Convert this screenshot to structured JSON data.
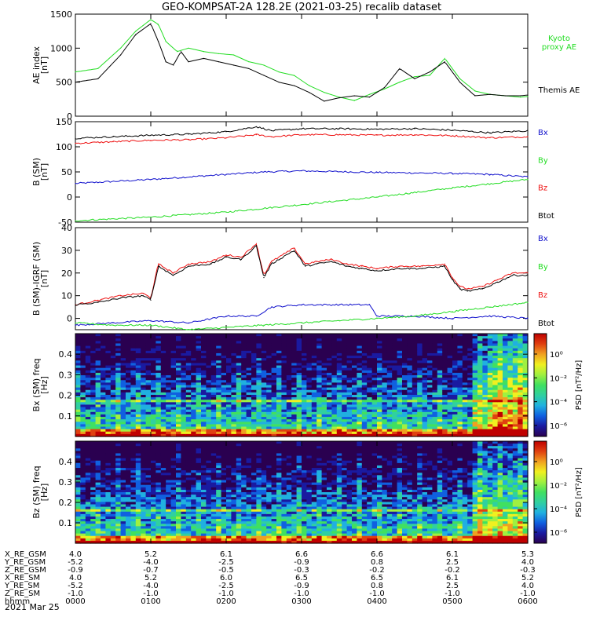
{
  "title": "GEO-KOMPSAT-2A 128.2E (2021-03-25) recalib dataset",
  "date_label": "2021 Mar 25",
  "orbit_table": {
    "rows": [
      {
        "label": "X_RE_GSM",
        "values": [
          "4.0",
          "5.2",
          "6.1",
          "6.6",
          "6.6",
          "6.1",
          "5.3"
        ]
      },
      {
        "label": "Y_RE_GSM",
        "values": [
          "-5.2",
          "-4.0",
          "-2.5",
          "-0.9",
          "0.8",
          "2.5",
          "4.0"
        ]
      },
      {
        "label": "Z_RE_GSM",
        "values": [
          "-0.9",
          "-0.7",
          "-0.5",
          "-0.3",
          "-0.2",
          "-0.2",
          "-0.3"
        ]
      },
      {
        "label": "X_RE_SM",
        "values": [
          "4.0",
          "5.2",
          "6.0",
          "6.5",
          "6.5",
          "6.1",
          "5.2"
        ]
      },
      {
        "label": "Y_RE_SM",
        "values": [
          "-5.2",
          "-4.0",
          "-2.5",
          "-0.9",
          "0.8",
          "2.5",
          "4.0"
        ]
      },
      {
        "label": "Z_RE_SM",
        "values": [
          "-1.0",
          "-1.0",
          "-1.0",
          "-1.0",
          "-1.0",
          "-1.0",
          "-1.0"
        ]
      },
      {
        "label": "hhmm",
        "values": [
          "0000",
          "0100",
          "0200",
          "0300",
          "0400",
          "0500",
          "0600"
        ]
      }
    ]
  },
  "colors": {
    "black": "#000000",
    "green": "#22dd22",
    "red": "#ee1111",
    "blue": "#1111cc"
  },
  "chart_data": [
    {
      "type": "line",
      "ylabel": "AE index [nT]",
      "ylim": [
        0,
        1500
      ],
      "yticks": [
        0,
        500,
        1000,
        1500
      ],
      "xlim": [
        0,
        6
      ],
      "series": [
        {
          "name": "Kyoto proxy AE",
          "legend_label": "Kyoto\nproxy AE",
          "color": "#22dd22",
          "x": [
            0,
            0.3,
            0.6,
            0.8,
            1.0,
            1.1,
            1.2,
            1.35,
            1.5,
            1.7,
            1.9,
            2.1,
            2.3,
            2.5,
            2.7,
            2.9,
            3.1,
            3.3,
            3.5,
            3.7,
            3.9,
            4.1,
            4.3,
            4.5,
            4.7,
            4.9,
            5.1,
            5.3,
            5.5,
            5.7,
            5.9,
            6.0
          ],
          "y": [
            650,
            700,
            1000,
            1250,
            1420,
            1350,
            1100,
            950,
            1000,
            950,
            920,
            900,
            800,
            750,
            650,
            600,
            450,
            350,
            280,
            230,
            320,
            400,
            500,
            580,
            600,
            850,
            550,
            370,
            320,
            300,
            280,
            290
          ]
        },
        {
          "name": "Themis AE",
          "legend_label": "Themis AE",
          "color": "#000000",
          "x": [
            0,
            0.3,
            0.6,
            0.8,
            1.0,
            1.1,
            1.2,
            1.3,
            1.4,
            1.5,
            1.7,
            1.9,
            2.1,
            2.3,
            2.5,
            2.7,
            2.9,
            3.1,
            3.3,
            3.5,
            3.7,
            3.9,
            4.1,
            4.3,
            4.5,
            4.7,
            4.9,
            5.1,
            5.3,
            5.5,
            5.7,
            5.9,
            6.0
          ],
          "y": [
            500,
            550,
            900,
            1200,
            1360,
            1100,
            800,
            750,
            950,
            800,
            850,
            800,
            750,
            700,
            600,
            500,
            450,
            350,
            220,
            270,
            300,
            280,
            420,
            700,
            550,
            650,
            800,
            500,
            300,
            320,
            300,
            300,
            310
          ]
        }
      ]
    },
    {
      "type": "line",
      "ylabel": "B (SM) [nT]",
      "ylim": [
        -50,
        150
      ],
      "yticks": [
        -50,
        0,
        50,
        100,
        150
      ],
      "xlim": [
        0,
        6
      ],
      "series": [
        {
          "name": "Bx",
          "color": "#1111cc",
          "x": [
            0,
            1,
            2,
            2.5,
            3,
            4,
            5,
            5.5,
            6
          ],
          "y": [
            27,
            35,
            45,
            50,
            52,
            49,
            47,
            45,
            40
          ]
        },
        {
          "name": "By",
          "color": "#22dd22",
          "x": [
            0,
            1,
            2,
            3,
            4,
            5,
            6
          ],
          "y": [
            -47,
            -40,
            -30,
            -15,
            0,
            18,
            35
          ]
        },
        {
          "name": "Bz",
          "color": "#ee1111",
          "x": [
            0,
            0.5,
            1,
            1.5,
            2,
            2.4,
            2.6,
            3,
            3.5,
            4,
            4.5,
            5,
            5.5,
            6
          ],
          "y": [
            107,
            110,
            113,
            114,
            118,
            124,
            120,
            124,
            124,
            123,
            124,
            122,
            118,
            120
          ]
        },
        {
          "name": "Btot",
          "color": "#000000",
          "x": [
            0,
            0.5,
            1,
            1.5,
            2,
            2.4,
            2.6,
            3,
            3.5,
            4,
            4.5,
            5,
            5.5,
            6
          ],
          "y": [
            117,
            120,
            123,
            125,
            130,
            140,
            132,
            136,
            136,
            135,
            136,
            133,
            128,
            132
          ]
        }
      ]
    },
    {
      "type": "line",
      "ylabel": "B (SM)-IGRF (SM) [nT]",
      "ylim": [
        -5,
        40
      ],
      "yticks": [
        0,
        10,
        20,
        30,
        40
      ],
      "xlim": [
        0,
        6
      ],
      "series": [
        {
          "name": "Bx",
          "color": "#1111cc",
          "x": [
            0,
            0.5,
            1,
            1.5,
            2,
            2.4,
            2.6,
            3,
            3.5,
            3.9,
            4,
            4.5,
            5,
            5.5,
            6
          ],
          "y": [
            -3,
            -2,
            -1,
            -2,
            1,
            1,
            5,
            6,
            6,
            6,
            1,
            1,
            0,
            1,
            0
          ]
        },
        {
          "name": "By",
          "color": "#22dd22",
          "x": [
            0,
            0.5,
            1,
            1.5,
            2,
            2.5,
            3,
            3.5,
            4,
            4.5,
            5,
            5.5,
            6
          ],
          "y": [
            -2,
            -3,
            -3,
            -5,
            -4,
            -3,
            -2,
            -1,
            0,
            1,
            3,
            5,
            7
          ]
        },
        {
          "name": "Bz",
          "color": "#ee1111",
          "x": [
            0,
            0.3,
            0.6,
            0.9,
            1.0,
            1.1,
            1.3,
            1.5,
            1.8,
            2.0,
            2.2,
            2.4,
            2.5,
            2.6,
            2.9,
            3.05,
            3.2,
            3.4,
            3.6,
            3.8,
            4.0,
            4.3,
            4.6,
            4.9,
            5.0,
            5.1,
            5.2,
            5.4,
            5.6,
            5.8,
            6.0
          ],
          "y": [
            6,
            8,
            10,
            11,
            9,
            24,
            20,
            24,
            25,
            28,
            27,
            33,
            19,
            25,
            31,
            24,
            25,
            26,
            24,
            23,
            22,
            23,
            23,
            24,
            18,
            14,
            13,
            14,
            17,
            20,
            20
          ]
        },
        {
          "name": "Btot",
          "color": "#000000",
          "x": [
            0,
            0.3,
            0.6,
            0.9,
            1.0,
            1.1,
            1.3,
            1.5,
            1.8,
            2.0,
            2.2,
            2.4,
            2.5,
            2.6,
            2.9,
            3.05,
            3.2,
            3.4,
            3.6,
            3.8,
            4.0,
            4.3,
            4.6,
            4.9,
            5.0,
            5.1,
            5.2,
            5.4,
            5.6,
            5.8,
            6.0
          ],
          "y": [
            6,
            7,
            9,
            10,
            8,
            23,
            19,
            23,
            24,
            27,
            26,
            32,
            18,
            24,
            30,
            23,
            24,
            25,
            23,
            22,
            21,
            22,
            22,
            23,
            17,
            13,
            12,
            13,
            16,
            19,
            19
          ]
        }
      ]
    },
    {
      "type": "heatmap",
      "ylabel": "Bx (SM) freq [Hz]",
      "yticks": [
        0.1,
        0.2,
        0.3,
        0.4
      ],
      "ylim": [
        0,
        0.5
      ],
      "xlim": [
        0,
        6
      ],
      "colorbar": {
        "label": "PSD [nT²/Hz]",
        "tick_labels": [
          "10⁰",
          "10⁻²",
          "10⁻⁴",
          "10⁻⁶"
        ],
        "range_log": [
          -7,
          1
        ]
      }
    },
    {
      "type": "heatmap",
      "ylabel": "Bz (SM) freq [Hz]",
      "yticks": [
        0.1,
        0.2,
        0.3,
        0.4
      ],
      "ylim": [
        0,
        0.5
      ],
      "xlim": [
        0,
        6
      ],
      "colorbar": {
        "label": "PSD [nT²/Hz]",
        "tick_labels": [
          "10⁰",
          "10⁻²",
          "10⁻⁴",
          "10⁻⁶"
        ],
        "range_log": [
          -7,
          1
        ]
      }
    }
  ]
}
